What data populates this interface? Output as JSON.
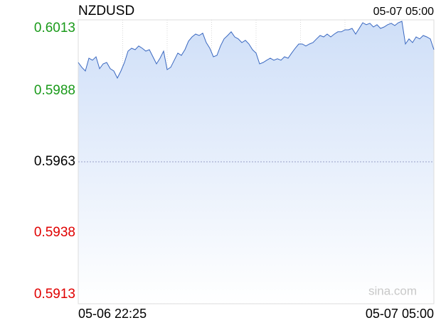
{
  "chart_data": {
    "type": "line",
    "title": "NZDUSD",
    "latest_time": "05-07 05:00",
    "xlabels": [
      "05-06 22:25",
      "05-07 05:00"
    ],
    "watermark": "sina.com",
    "ylim": [
      0.5913,
      0.6013
    ],
    "yticks": [
      0.6013,
      0.5988,
      0.5963,
      0.5938,
      0.5913
    ],
    "reference": 0.5963,
    "up_color": "#1a9a1a",
    "down_color": "#e00000",
    "grid": true,
    "series": [
      {
        "name": "NZDUSD",
        "color": "#3a68c0",
        "values": [
          0.5998,
          0.59963,
          0.5995,
          0.59995,
          0.59988,
          0.6,
          0.59958,
          0.59975,
          0.5998,
          0.59958,
          0.5995,
          0.59925,
          0.5995,
          0.5998,
          0.6002,
          0.6003,
          0.60025,
          0.60038,
          0.6003,
          0.6002,
          0.60025,
          0.6,
          0.59975,
          0.59995,
          0.6002,
          0.59955,
          0.59963,
          0.59988,
          0.60013,
          0.60005,
          0.60025,
          0.60055,
          0.6007,
          0.6008,
          0.60075,
          0.60083,
          0.6005,
          0.6003,
          0.6,
          0.60005,
          0.60038,
          0.60063,
          0.60075,
          0.60088,
          0.6007,
          0.60063,
          0.6005,
          0.60058,
          0.60045,
          0.60025,
          0.60013,
          0.59975,
          0.5998,
          0.59988,
          0.59995,
          0.59988,
          0.59993,
          0.59988,
          0.6,
          0.59995,
          0.60013,
          0.6003,
          0.60045,
          0.60045,
          0.60038,
          0.60045,
          0.6005,
          0.60063,
          0.60075,
          0.6007,
          0.6008,
          0.6007,
          0.6008,
          0.60088,
          0.60088,
          0.60095,
          0.60095,
          0.601,
          0.6008,
          0.601,
          0.6012,
          0.60113,
          0.60118,
          0.60105,
          0.60113,
          0.601,
          0.60105,
          0.60113,
          0.60118,
          0.6011,
          0.6012,
          0.60125,
          0.60045,
          0.60063,
          0.6005,
          0.6007,
          0.60063,
          0.60075,
          0.6007,
          0.60063,
          0.60025
        ]
      }
    ]
  }
}
